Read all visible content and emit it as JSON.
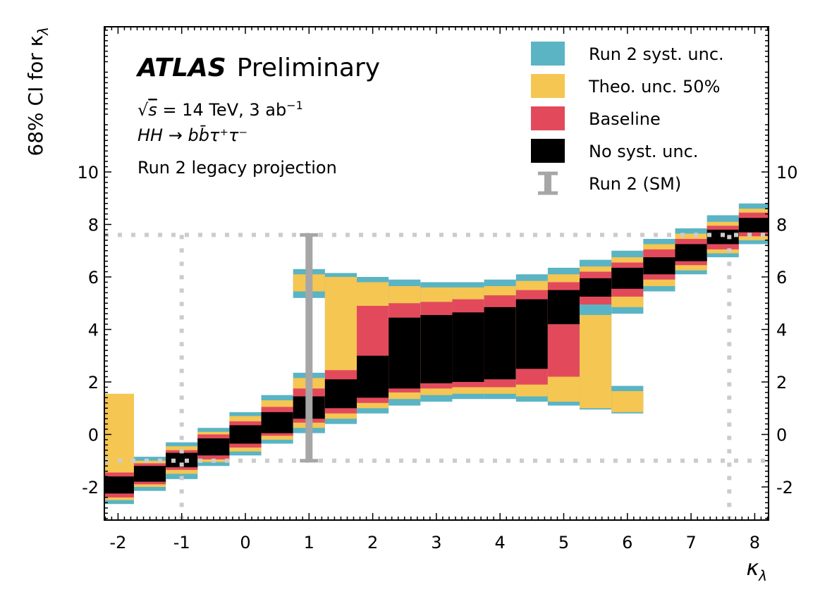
{
  "chart_data": {
    "type": "band",
    "title": "",
    "annotations": {
      "experiment": "ATLAS",
      "status": "Preliminary",
      "energy_line": "√s = 14 TeV, 3 ab⁻¹",
      "energy_prefix": "√",
      "energy_s": "s",
      "energy_rest": " = 14 TeV, 3 ab",
      "energy_sup": "−1",
      "process": "HH → bb̄τ⁺τ⁻",
      "projection": "Run 2 legacy projection"
    },
    "xlabel": "κλ",
    "xlabel_main": "κ",
    "xlabel_sub": "λ",
    "ylabel": "68% CI for κλ",
    "ylabel_main": "68% CI for κ",
    "ylabel_sub": "λ",
    "xlim": [
      -2.25,
      8.25
    ],
    "ylim": [
      -3.3,
      15.5
    ],
    "x_ticks": [
      -2,
      -1,
      0,
      1,
      2,
      3,
      4,
      5,
      6,
      7,
      8
    ],
    "x_tick_labels": [
      "-2",
      "-1",
      "0",
      "1",
      "2",
      "3",
      "4",
      "5",
      "6",
      "7",
      "8"
    ],
    "y_ticks": [
      -2,
      0,
      2,
      4,
      6,
      8,
      10
    ],
    "y_tick_labels": [
      "-2",
      "0",
      "2",
      "4",
      "6",
      "8",
      "10"
    ],
    "legend_position": "top-right",
    "colors": {
      "run2_syst": "#5ab4c4",
      "theo": "#f5c652",
      "baseline": "#e24a5c",
      "nosyst": "#000000",
      "run2_sm": "#a6a6a6",
      "dotted": "#cccccc"
    },
    "legend": [
      {
        "key": "run2_syst",
        "label": "Run 2 syst. unc."
      },
      {
        "key": "theo",
        "label": "Theo. unc. 50%"
      },
      {
        "key": "baseline",
        "label": "Baseline"
      },
      {
        "key": "nosyst",
        "label": "No syst. unc."
      },
      {
        "key": "run2_sm",
        "label": "Run 2 (SM)"
      }
    ],
    "run2_sm": {
      "x": 1.0,
      "low": -1.0,
      "high": 7.6
    },
    "dotted_box": {
      "x_low": -1.0,
      "x_high": 7.6,
      "y_low": -1.0,
      "y_high": 7.6
    },
    "bin_width": 0.5,
    "columns": [
      {
        "x": -2.0,
        "layers": {
          "run2_syst": [
            [
              -2.65,
              1.4
            ]
          ],
          "theo": [
            [
              -2.5,
              1.55
            ]
          ],
          "baseline": [
            [
              -2.4,
              -1.45
            ]
          ],
          "nosyst": [
            [
              -2.25,
              -1.6
            ]
          ]
        }
      },
      {
        "x": -1.5,
        "layers": {
          "run2_syst": [
            [
              -2.15,
              -0.85
            ]
          ],
          "theo": [
            [
              -2.0,
              -1.0
            ]
          ],
          "baseline": [
            [
              -1.9,
              -1.1
            ]
          ],
          "nosyst": [
            [
              -1.8,
              -1.2
            ]
          ]
        }
      },
      {
        "x": -1.0,
        "layers": {
          "run2_syst": [
            [
              -1.7,
              -0.3
            ]
          ],
          "theo": [
            [
              -1.5,
              -0.45
            ]
          ],
          "baseline": [
            [
              -1.35,
              -0.6
            ]
          ],
          "nosyst": [
            [
              -1.25,
              -0.7
            ]
          ]
        }
      },
      {
        "x": -0.5,
        "layers": {
          "run2_syst": [
            [
              -1.2,
              0.25
            ]
          ],
          "theo": [
            [
              -1.05,
              0.1
            ]
          ],
          "baseline": [
            [
              -0.95,
              0.0
            ]
          ],
          "nosyst": [
            [
              -0.8,
              -0.15
            ]
          ]
        }
      },
      {
        "x": 0.0,
        "layers": {
          "run2_syst": [
            [
              -0.8,
              0.85
            ]
          ],
          "theo": [
            [
              -0.65,
              0.7
            ]
          ],
          "baseline": [
            [
              -0.5,
              0.5
            ]
          ],
          "nosyst": [
            [
              -0.35,
              0.35
            ]
          ]
        }
      },
      {
        "x": 0.5,
        "layers": {
          "run2_syst": [
            [
              -0.35,
              1.5
            ]
          ],
          "theo": [
            [
              -0.2,
              1.3
            ]
          ],
          "baseline": [
            [
              -0.05,
              1.05
            ]
          ],
          "nosyst": [
            [
              0.05,
              0.85
            ]
          ]
        }
      },
      {
        "x": 1.0,
        "layers": {
          "run2_syst": [
            [
              0.05,
              2.35
            ],
            [
              5.2,
              6.3
            ]
          ],
          "theo": [
            [
              0.25,
              2.15
            ],
            [
              5.45,
              6.1
            ]
          ],
          "baseline": [
            [
              0.45,
              1.75
            ]
          ],
          "nosyst": [
            [
              0.6,
              1.45
            ]
          ]
        }
      },
      {
        "x": 1.5,
        "layers": {
          "run2_syst": [
            [
              0.4,
              6.15
            ]
          ],
          "theo": [
            [
              0.6,
              6.0
            ]
          ],
          "baseline": [
            [
              0.8,
              2.45
            ]
          ],
          "nosyst": [
            [
              1.0,
              2.1
            ]
          ]
        }
      },
      {
        "x": 2.0,
        "layers": {
          "run2_syst": [
            [
              0.8,
              6.0
            ]
          ],
          "theo": [
            [
              1.0,
              5.8
            ]
          ],
          "baseline": [
            [
              1.2,
              4.9
            ]
          ],
          "nosyst": [
            [
              1.4,
              3.0
            ]
          ]
        }
      },
      {
        "x": 2.5,
        "layers": {
          "run2_syst": [
            [
              1.1,
              5.9
            ]
          ],
          "theo": [
            [
              1.35,
              5.65
            ]
          ],
          "baseline": [
            [
              1.6,
              5.0
            ]
          ],
          "nosyst": [
            [
              1.75,
              4.45
            ]
          ]
        }
      },
      {
        "x": 3.0,
        "layers": {
          "run2_syst": [
            [
              1.25,
              5.8
            ]
          ],
          "theo": [
            [
              1.5,
              5.6
            ]
          ],
          "baseline": [
            [
              1.75,
              5.05
            ]
          ],
          "nosyst": [
            [
              1.95,
              4.55
            ]
          ]
        }
      },
      {
        "x": 3.5,
        "layers": {
          "run2_syst": [
            [
              1.35,
              5.8
            ]
          ],
          "theo": [
            [
              1.55,
              5.6
            ]
          ],
          "baseline": [
            [
              1.8,
              5.15
            ]
          ],
          "nosyst": [
            [
              2.0,
              4.65
            ]
          ]
        }
      },
      {
        "x": 4.0,
        "layers": {
          "run2_syst": [
            [
              1.35,
              5.9
            ]
          ],
          "theo": [
            [
              1.55,
              5.65
            ]
          ],
          "baseline": [
            [
              1.8,
              5.3
            ]
          ],
          "nosyst": [
            [
              2.1,
              4.85
            ]
          ]
        }
      },
      {
        "x": 4.5,
        "layers": {
          "run2_syst": [
            [
              1.25,
              6.1
            ]
          ],
          "theo": [
            [
              1.45,
              5.85
            ]
          ],
          "baseline": [
            [
              1.9,
              5.5
            ]
          ],
          "nosyst": [
            [
              2.5,
              5.15
            ]
          ]
        }
      },
      {
        "x": 5.0,
        "layers": {
          "run2_syst": [
            [
              1.1,
              6.35
            ]
          ],
          "theo": [
            [
              1.25,
              6.1
            ]
          ],
          "baseline": [
            [
              2.2,
              5.8
            ]
          ],
          "nosyst": [
            [
              4.2,
              5.5
            ]
          ]
        }
      },
      {
        "x": 5.5,
        "layers": {
          "run2_syst": [
            [
              0.95,
              6.65
            ],
            [
              4.95,
              6.65
            ]
          ],
          "theo": [
            [
              1.0,
              4.55
            ],
            [
              5.0,
              6.4
            ]
          ],
          "baseline": [
            [
              4.95,
              6.2
            ]
          ],
          "nosyst": [
            [
              5.25,
              5.95
            ]
          ]
        }
      },
      {
        "x": 6.0,
        "layers": {
          "run2_syst": [
            [
              0.8,
              1.85
            ],
            [
              4.6,
              7.0
            ]
          ],
          "theo": [
            [
              0.85,
              1.65
            ],
            [
              4.85,
              6.75
            ]
          ],
          "baseline": [
            [
              5.25,
              6.55
            ]
          ],
          "nosyst": [
            [
              5.55,
              6.35
            ]
          ]
        }
      },
      {
        "x": 6.5,
        "layers": {
          "run2_syst": [
            [
              5.45,
              7.45
            ]
          ],
          "theo": [
            [
              5.65,
              7.25
            ]
          ],
          "baseline": [
            [
              5.9,
              7.05
            ]
          ],
          "nosyst": [
            [
              6.1,
              6.75
            ]
          ]
        }
      },
      {
        "x": 7.0,
        "layers": {
          "run2_syst": [
            [
              6.1,
              7.85
            ]
          ],
          "theo": [
            [
              6.25,
              7.65
            ]
          ],
          "baseline": [
            [
              6.45,
              7.45
            ]
          ],
          "nosyst": [
            [
              6.6,
              7.25
            ]
          ]
        }
      },
      {
        "x": 7.5,
        "layers": {
          "run2_syst": [
            [
              6.75,
              8.35
            ]
          ],
          "theo": [
            [
              6.9,
              8.1
            ]
          ],
          "baseline": [
            [
              7.05,
              7.95
            ]
          ],
          "nosyst": [
            [
              7.25,
              7.8
            ]
          ]
        }
      },
      {
        "x": 8.0,
        "layers": {
          "run2_syst": [
            [
              7.25,
              8.8
            ]
          ],
          "theo": [
            [
              7.4,
              8.6
            ]
          ],
          "baseline": [
            [
              7.55,
              8.45
            ]
          ],
          "nosyst": [
            [
              7.7,
              8.25
            ]
          ]
        }
      }
    ]
  }
}
